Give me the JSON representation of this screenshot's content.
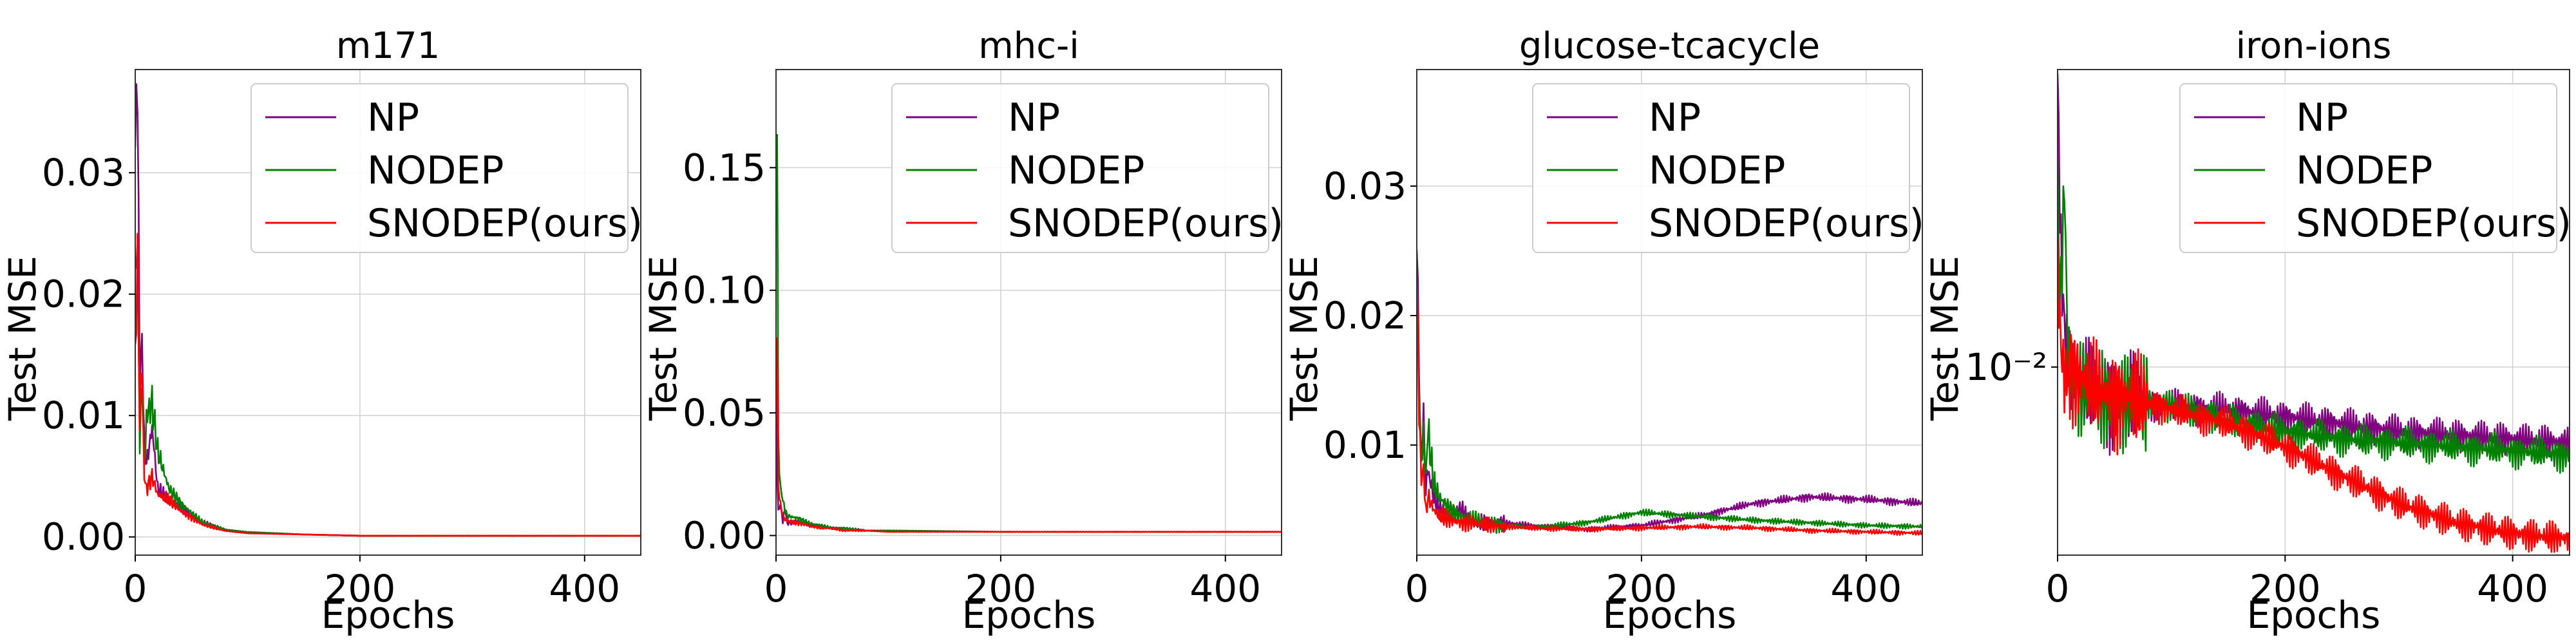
{
  "chart_data": [
    {
      "type": "line",
      "title": "m171",
      "xlabel": "Epochs",
      "ylabel": "Test MSE",
      "yscale": "linear",
      "xlim": [
        0,
        450
      ],
      "ylim": [
        -0.0015,
        0.0385
      ],
      "xticks": [
        0,
        200,
        400
      ],
      "xtick_labels": [
        "0",
        "200",
        "400"
      ],
      "yticks": [
        0.0,
        0.01,
        0.02,
        0.03
      ],
      "ytick_labels": [
        "0.00",
        "0.01",
        "0.02",
        "0.03"
      ],
      "grid": true,
      "legend": "top-right",
      "series": [
        {
          "name": "NP",
          "color": "#800080",
          "x": [
            0,
            2,
            4,
            6,
            8,
            10,
            15,
            20,
            30,
            40,
            50,
            60,
            80,
            100,
            150,
            200,
            300,
            400,
            450
          ],
          "y": [
            0.03,
            0.036,
            0.012,
            0.016,
            0.008,
            0.006,
            0.009,
            0.004,
            0.003,
            0.0025,
            0.0018,
            0.0012,
            0.0006,
            0.0004,
            0.0002,
            0.0001,
            0.0001,
            0.0001,
            0.0001
          ]
        },
        {
          "name": "NODEP",
          "color": "#008000",
          "x": [
            0,
            2,
            4,
            6,
            8,
            10,
            15,
            20,
            30,
            40,
            50,
            60,
            80,
            100,
            150,
            200,
            300,
            400,
            450
          ],
          "y": [
            0.02,
            0.025,
            0.008,
            0.014,
            0.006,
            0.01,
            0.011,
            0.007,
            0.004,
            0.0028,
            0.002,
            0.0012,
            0.0006,
            0.0004,
            0.0002,
            0.0001,
            0.0001,
            0.0001,
            0.0001
          ]
        },
        {
          "name": "SNODEP(ours)",
          "color": "#ff0000",
          "x": [
            0,
            2,
            4,
            6,
            8,
            10,
            15,
            20,
            30,
            40,
            50,
            60,
            80,
            100,
            150,
            200,
            300,
            400,
            450
          ],
          "y": [
            0.015,
            0.025,
            0.01,
            0.016,
            0.005,
            0.004,
            0.005,
            0.0035,
            0.003,
            0.0022,
            0.0016,
            0.001,
            0.0005,
            0.0003,
            0.0002,
            0.0001,
            0.0001,
            0.0001,
            0.0001
          ]
        }
      ]
    },
    {
      "type": "line",
      "title": "mhc-i",
      "xlabel": "Epochs",
      "ylabel": "Test MSE",
      "yscale": "linear",
      "xlim": [
        0,
        450
      ],
      "ylim": [
        -0.008,
        0.19
      ],
      "xticks": [
        0,
        200,
        400
      ],
      "xtick_labels": [
        "0",
        "200",
        "400"
      ],
      "yticks": [
        0.0,
        0.05,
        0.1,
        0.15
      ],
      "ytick_labels": [
        "0.00",
        "0.05",
        "0.10",
        "0.15"
      ],
      "grid": true,
      "legend": "top-right",
      "series": [
        {
          "name": "NP",
          "color": "#800080",
          "x": [
            0,
            2,
            4,
            6,
            8,
            10,
            20,
            30,
            40,
            50,
            60,
            80,
            100,
            200,
            300,
            400,
            450
          ],
          "y": [
            0.05,
            0.01,
            0.014,
            0.006,
            0.012,
            0.005,
            0.006,
            0.004,
            0.004,
            0.003,
            0.003,
            0.002,
            0.002,
            0.0015,
            0.0015,
            0.0015,
            0.0015
          ]
        },
        {
          "name": "NODEP",
          "color": "#008000",
          "x": [
            0,
            1,
            2,
            4,
            6,
            8,
            10,
            20,
            30,
            40,
            50,
            60,
            80,
            100,
            200,
            300,
            400,
            450
          ],
          "y": [
            0.17,
            0.19,
            0.04,
            0.02,
            0.015,
            0.01,
            0.008,
            0.007,
            0.005,
            0.004,
            0.003,
            0.003,
            0.002,
            0.002,
            0.0015,
            0.0015,
            0.0015,
            0.0015
          ]
        },
        {
          "name": "SNODEP(ours)",
          "color": "#ff0000",
          "x": [
            0,
            1,
            2,
            4,
            6,
            8,
            10,
            20,
            30,
            40,
            50,
            60,
            80,
            100,
            200,
            300,
            400,
            450
          ],
          "y": [
            0.06,
            0.08,
            0.02,
            0.012,
            0.008,
            0.006,
            0.006,
            0.005,
            0.004,
            0.003,
            0.003,
            0.002,
            0.002,
            0.0015,
            0.0015,
            0.0015,
            0.0015,
            0.0015
          ]
        }
      ]
    },
    {
      "type": "line",
      "title": "glucose-tcacycle",
      "xlabel": "Epochs",
      "ylabel": "Test MSE",
      "yscale": "linear",
      "xlim": [
        0,
        450
      ],
      "ylim": [
        0.0015,
        0.039
      ],
      "xticks": [
        0,
        200,
        400
      ],
      "xtick_labels": [
        "0",
        "200",
        "400"
      ],
      "yticks": [
        0.01,
        0.02,
        0.03
      ],
      "ytick_labels": [
        "0.01",
        "0.02",
        "0.03"
      ],
      "grid": true,
      "legend": "top-right",
      "series": [
        {
          "name": "NP",
          "color": "#800080",
          "x": [
            0,
            2,
            4,
            6,
            8,
            10,
            15,
            20,
            30,
            40,
            50,
            60,
            80,
            100,
            150,
            200,
            250,
            300,
            350,
            400,
            450
          ],
          "y": [
            0.03,
            0.016,
            0.009,
            0.012,
            0.006,
            0.008,
            0.006,
            0.005,
            0.0045,
            0.005,
            0.004,
            0.004,
            0.004,
            0.0038,
            0.0035,
            0.0038,
            0.0045,
            0.0055,
            0.006,
            0.0058,
            0.0055
          ]
        },
        {
          "name": "NODEP",
          "color": "#008000",
          "x": [
            0,
            2,
            4,
            6,
            8,
            10,
            15,
            20,
            30,
            40,
            50,
            60,
            80,
            100,
            150,
            200,
            250,
            300,
            350,
            400,
            450
          ],
          "y": [
            0.02,
            0.014,
            0.008,
            0.01,
            0.007,
            0.011,
            0.007,
            0.006,
            0.005,
            0.0045,
            0.0042,
            0.004,
            0.0038,
            0.0036,
            0.004,
            0.0048,
            0.0045,
            0.0042,
            0.004,
            0.0038,
            0.0037
          ]
        },
        {
          "name": "SNODEP(ours)",
          "color": "#ff0000",
          "x": [
            0,
            2,
            4,
            6,
            8,
            10,
            15,
            20,
            30,
            40,
            50,
            60,
            80,
            100,
            150,
            200,
            250,
            300,
            350,
            400,
            450
          ],
          "y": [
            0.022,
            0.012,
            0.007,
            0.008,
            0.005,
            0.006,
            0.005,
            0.0045,
            0.0042,
            0.004,
            0.004,
            0.0038,
            0.0037,
            0.0036,
            0.0035,
            0.0036,
            0.0037,
            0.0036,
            0.0034,
            0.0033,
            0.0032
          ]
        }
      ]
    },
    {
      "type": "line",
      "title": "iron-ions",
      "xlabel": "Epochs",
      "ylabel": "Test MSE",
      "yscale": "log",
      "xlim": [
        0,
        450
      ],
      "ylim": [
        0.0054,
        0.0265
      ],
      "xticks": [
        0,
        200,
        400
      ],
      "xtick_labels": [
        "0",
        "200",
        "400"
      ],
      "yticks": [
        0.01
      ],
      "ytick_labels": [
        "10⁻²"
      ],
      "grid": true,
      "legend": "top-right",
      "series": [
        {
          "name": "NP",
          "color": "#800080",
          "x": [
            0,
            2,
            4,
            6,
            8,
            10,
            15,
            20,
            30,
            40,
            60,
            80,
            100,
            150,
            200,
            250,
            300,
            350,
            400,
            450
          ],
          "y": [
            0.025,
            0.016,
            0.012,
            0.011,
            0.0105,
            0.0102,
            0.0098,
            0.0095,
            0.0093,
            0.0092,
            0.009,
            0.0089,
            0.0088,
            0.0087,
            0.0085,
            0.0083,
            0.0081,
            0.008,
            0.0079,
            0.0078
          ]
        },
        {
          "name": "NODEP",
          "color": "#008000",
          "x": [
            0,
            2,
            4,
            6,
            8,
            10,
            12,
            15,
            20,
            30,
            40,
            60,
            80,
            100,
            150,
            200,
            250,
            300,
            350,
            400,
            450
          ],
          "y": [
            0.017,
            0.012,
            0.014,
            0.019,
            0.013,
            0.011,
            0.01,
            0.0097,
            0.0094,
            0.0092,
            0.0091,
            0.009,
            0.0089,
            0.0088,
            0.0084,
            0.0081,
            0.0079,
            0.0078,
            0.0077,
            0.0076,
            0.0075
          ]
        },
        {
          "name": "SNODEP(ours)",
          "color": "#ff0000",
          "x": [
            0,
            2,
            4,
            6,
            8,
            10,
            15,
            20,
            30,
            40,
            60,
            80,
            100,
            150,
            200,
            250,
            300,
            350,
            400,
            450
          ],
          "y": [
            0.014,
            0.012,
            0.011,
            0.0105,
            0.0102,
            0.0101,
            0.0099,
            0.0097,
            0.0094,
            0.0092,
            0.0091,
            0.0089,
            0.0087,
            0.0083,
            0.0077,
            0.007,
            0.0064,
            0.006,
            0.0058,
            0.0057
          ]
        }
      ]
    }
  ]
}
